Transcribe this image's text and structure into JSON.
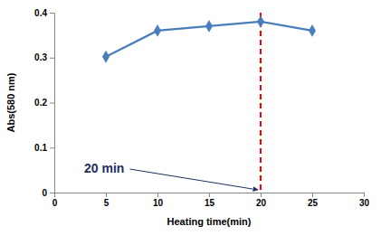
{
  "chart_data": {
    "type": "line",
    "x_label": "Heating time(min)",
    "y_label": "Abs(580 nm)",
    "x": [
      5,
      10,
      15,
      20,
      25
    ],
    "values": [
      0.302,
      0.36,
      0.37,
      0.38,
      0.36
    ],
    "color": "#4a7ebb",
    "marker": "diamond",
    "xlim": [
      0,
      30
    ],
    "xticks": [
      0,
      5,
      10,
      15,
      20,
      25,
      30
    ],
    "ylim": [
      0,
      0.4
    ],
    "yticks": [
      0,
      0.1,
      0.2,
      0.3,
      0.4
    ],
    "grid": false,
    "annotations": [
      {
        "text": "20 min",
        "x": 20
      }
    ]
  }
}
